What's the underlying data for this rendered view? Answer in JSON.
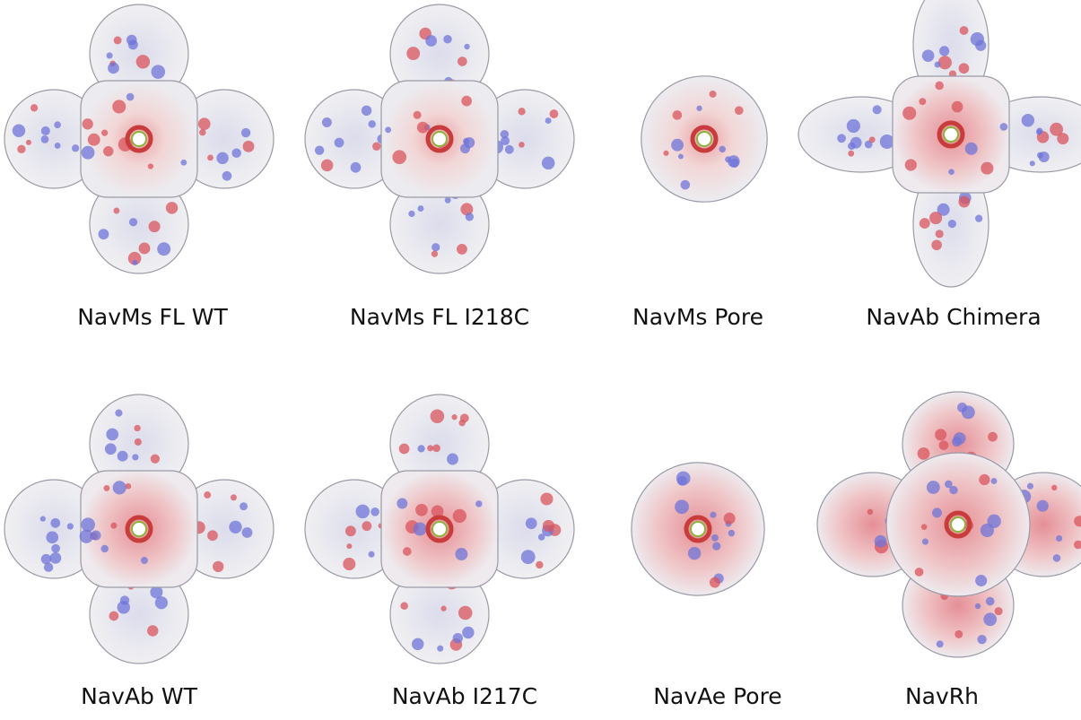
{
  "panels": [
    {
      "label": "NavMs FL WT"
    },
    {
      "label": "NavMs FL I218C"
    },
    {
      "label": "NavMs Pore"
    },
    {
      "label": "NavAb Chimera"
    },
    {
      "label": "NavAb WT"
    },
    {
      "label": "NavAb I217C"
    },
    {
      "label": "NavAe Pore"
    },
    {
      "label": "NavRh"
    }
  ]
}
